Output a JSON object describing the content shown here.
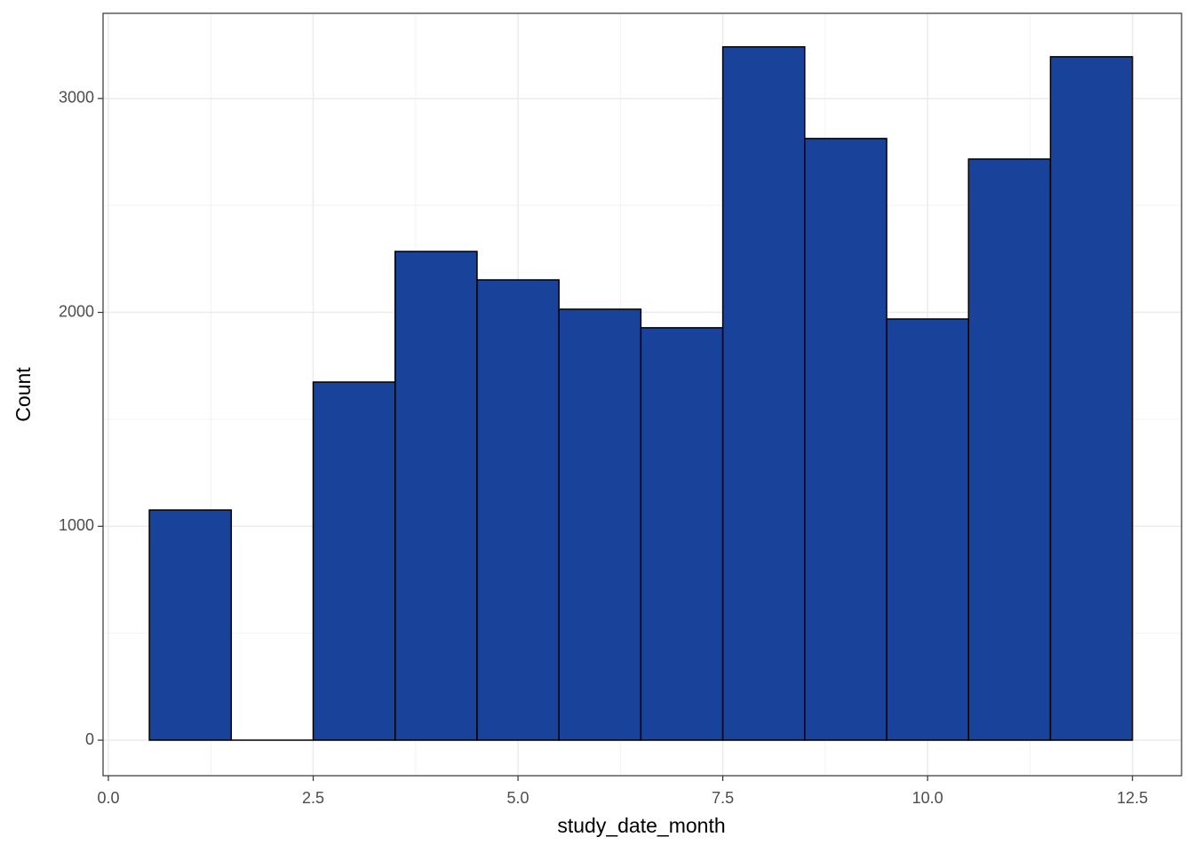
{
  "chart_data": {
    "type": "histogram",
    "x_label": "study_date_month",
    "y_label": "Count",
    "bins": [
      0.5,
      1.5,
      2.5,
      3.5,
      4.5,
      5.5,
      6.5,
      7.5,
      8.5,
      9.5,
      10.5,
      11.5,
      12.5
    ],
    "values": [
      1076,
      0,
      1674,
      2285,
      2152,
      2015,
      1928,
      3241,
      2813,
      1969,
      2717,
      3195
    ],
    "color": "#19439a",
    "xlim": [
      -0.065,
      13.1
    ],
    "xticks": [
      {
        "value": 0,
        "label": "0.0"
      },
      2.5,
      {
        "value": 5,
        "label": "5.0"
      },
      7.5,
      {
        "value": 10,
        "label": "10.0"
      },
      12.5
    ],
    "ylim": [
      -166,
      3398
    ],
    "yticks": [
      0,
      1000,
      2000,
      3000
    ],
    "grid": true
  }
}
